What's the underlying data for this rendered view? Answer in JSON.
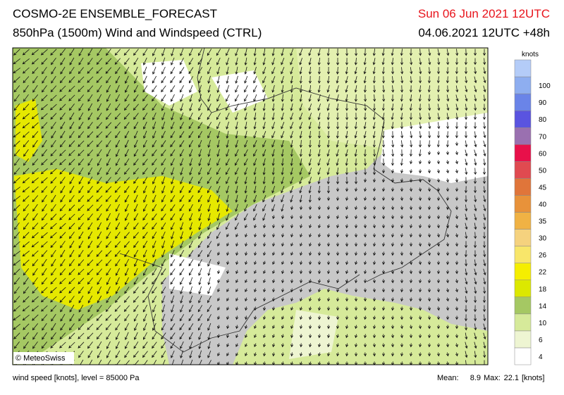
{
  "header": {
    "title": "COSMO-2E ENSEMBLE_FORECAST",
    "subtitle": "850hPa (1500m) Wind and Windspeed (CTRL)",
    "valid_time": "Sun 06 Jun 2021 12UTC",
    "run_time": "04.06.2021 12UTC +48h"
  },
  "colorbar": {
    "unit": "knots",
    "ticks": [
      4,
      6,
      10,
      14,
      18,
      22,
      26,
      30,
      35,
      40,
      45,
      50,
      60,
      70,
      80,
      90,
      100
    ],
    "colors": [
      "#ffffff",
      "#eef5d2",
      "#d6ea9a",
      "#a5c863",
      "#dce800",
      "#f5ee00",
      "#f8e66a",
      "#f5d27e",
      "#f0b244",
      "#e8923a",
      "#e0753a",
      "#e04a50",
      "#e8104a",
      "#9a70b0",
      "#5a54e0",
      "#6a84e8",
      "#8eaef0",
      "#b4ccf8"
    ]
  },
  "footer": {
    "copyright": "© MeteoSwiss",
    "description": "wind speed [knots], level = 85000 Pa",
    "mean_label": "Mean:",
    "mean": 8.9,
    "max_label": "Max:",
    "max": 22.1,
    "unit": "[knots]"
  }
}
